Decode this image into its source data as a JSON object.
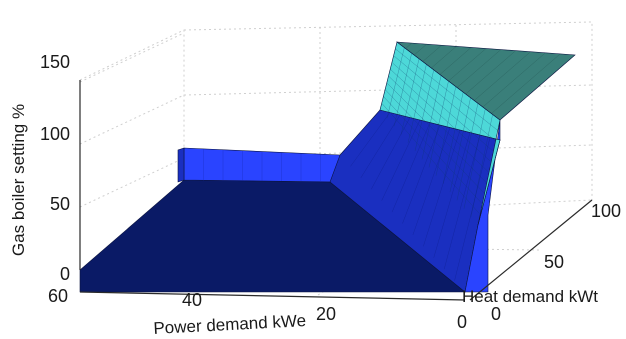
{
  "chart_data": {
    "type": "surface3d",
    "title": "",
    "xlabel": "Power demand kWe",
    "ylabel": "Heat demand kWt",
    "zlabel": "Gas boiler setting %",
    "x_ticks": [
      "60",
      "40",
      "20",
      "0"
    ],
    "y_ticks": [
      "0",
      "50",
      "100"
    ],
    "z_ticks": [
      "0",
      "50",
      "100",
      "150"
    ],
    "xlim": [
      0,
      60
    ],
    "ylim": [
      0,
      100
    ],
    "zlim": [
      0,
      150
    ],
    "grid": true,
    "facets": [
      {
        "name": "",
        "color": "#0a1a66"
      },
      {
        "name": "",
        "color": "#1a2fc0"
      },
      {
        "name": "",
        "color": "#2a44ff"
      },
      {
        "name": "",
        "color": "#4dd8d8"
      },
      {
        "name": "",
        "color": "#3a7f7a"
      }
    ],
    "surface_points": [
      {
        "power": 60,
        "heat": 0,
        "setting": 0
      },
      {
        "power": 60,
        "heat": 100,
        "setting": 0
      },
      {
        "power": 0,
        "heat": 0,
        "setting": 0
      },
      {
        "power": 40,
        "heat": 100,
        "setting": 50
      },
      {
        "power": 20,
        "heat": 100,
        "setting": 50
      },
      {
        "power": 10,
        "heat": 100,
        "setting": 150
      },
      {
        "power": 0,
        "heat": 100,
        "setting": 150
      }
    ]
  }
}
